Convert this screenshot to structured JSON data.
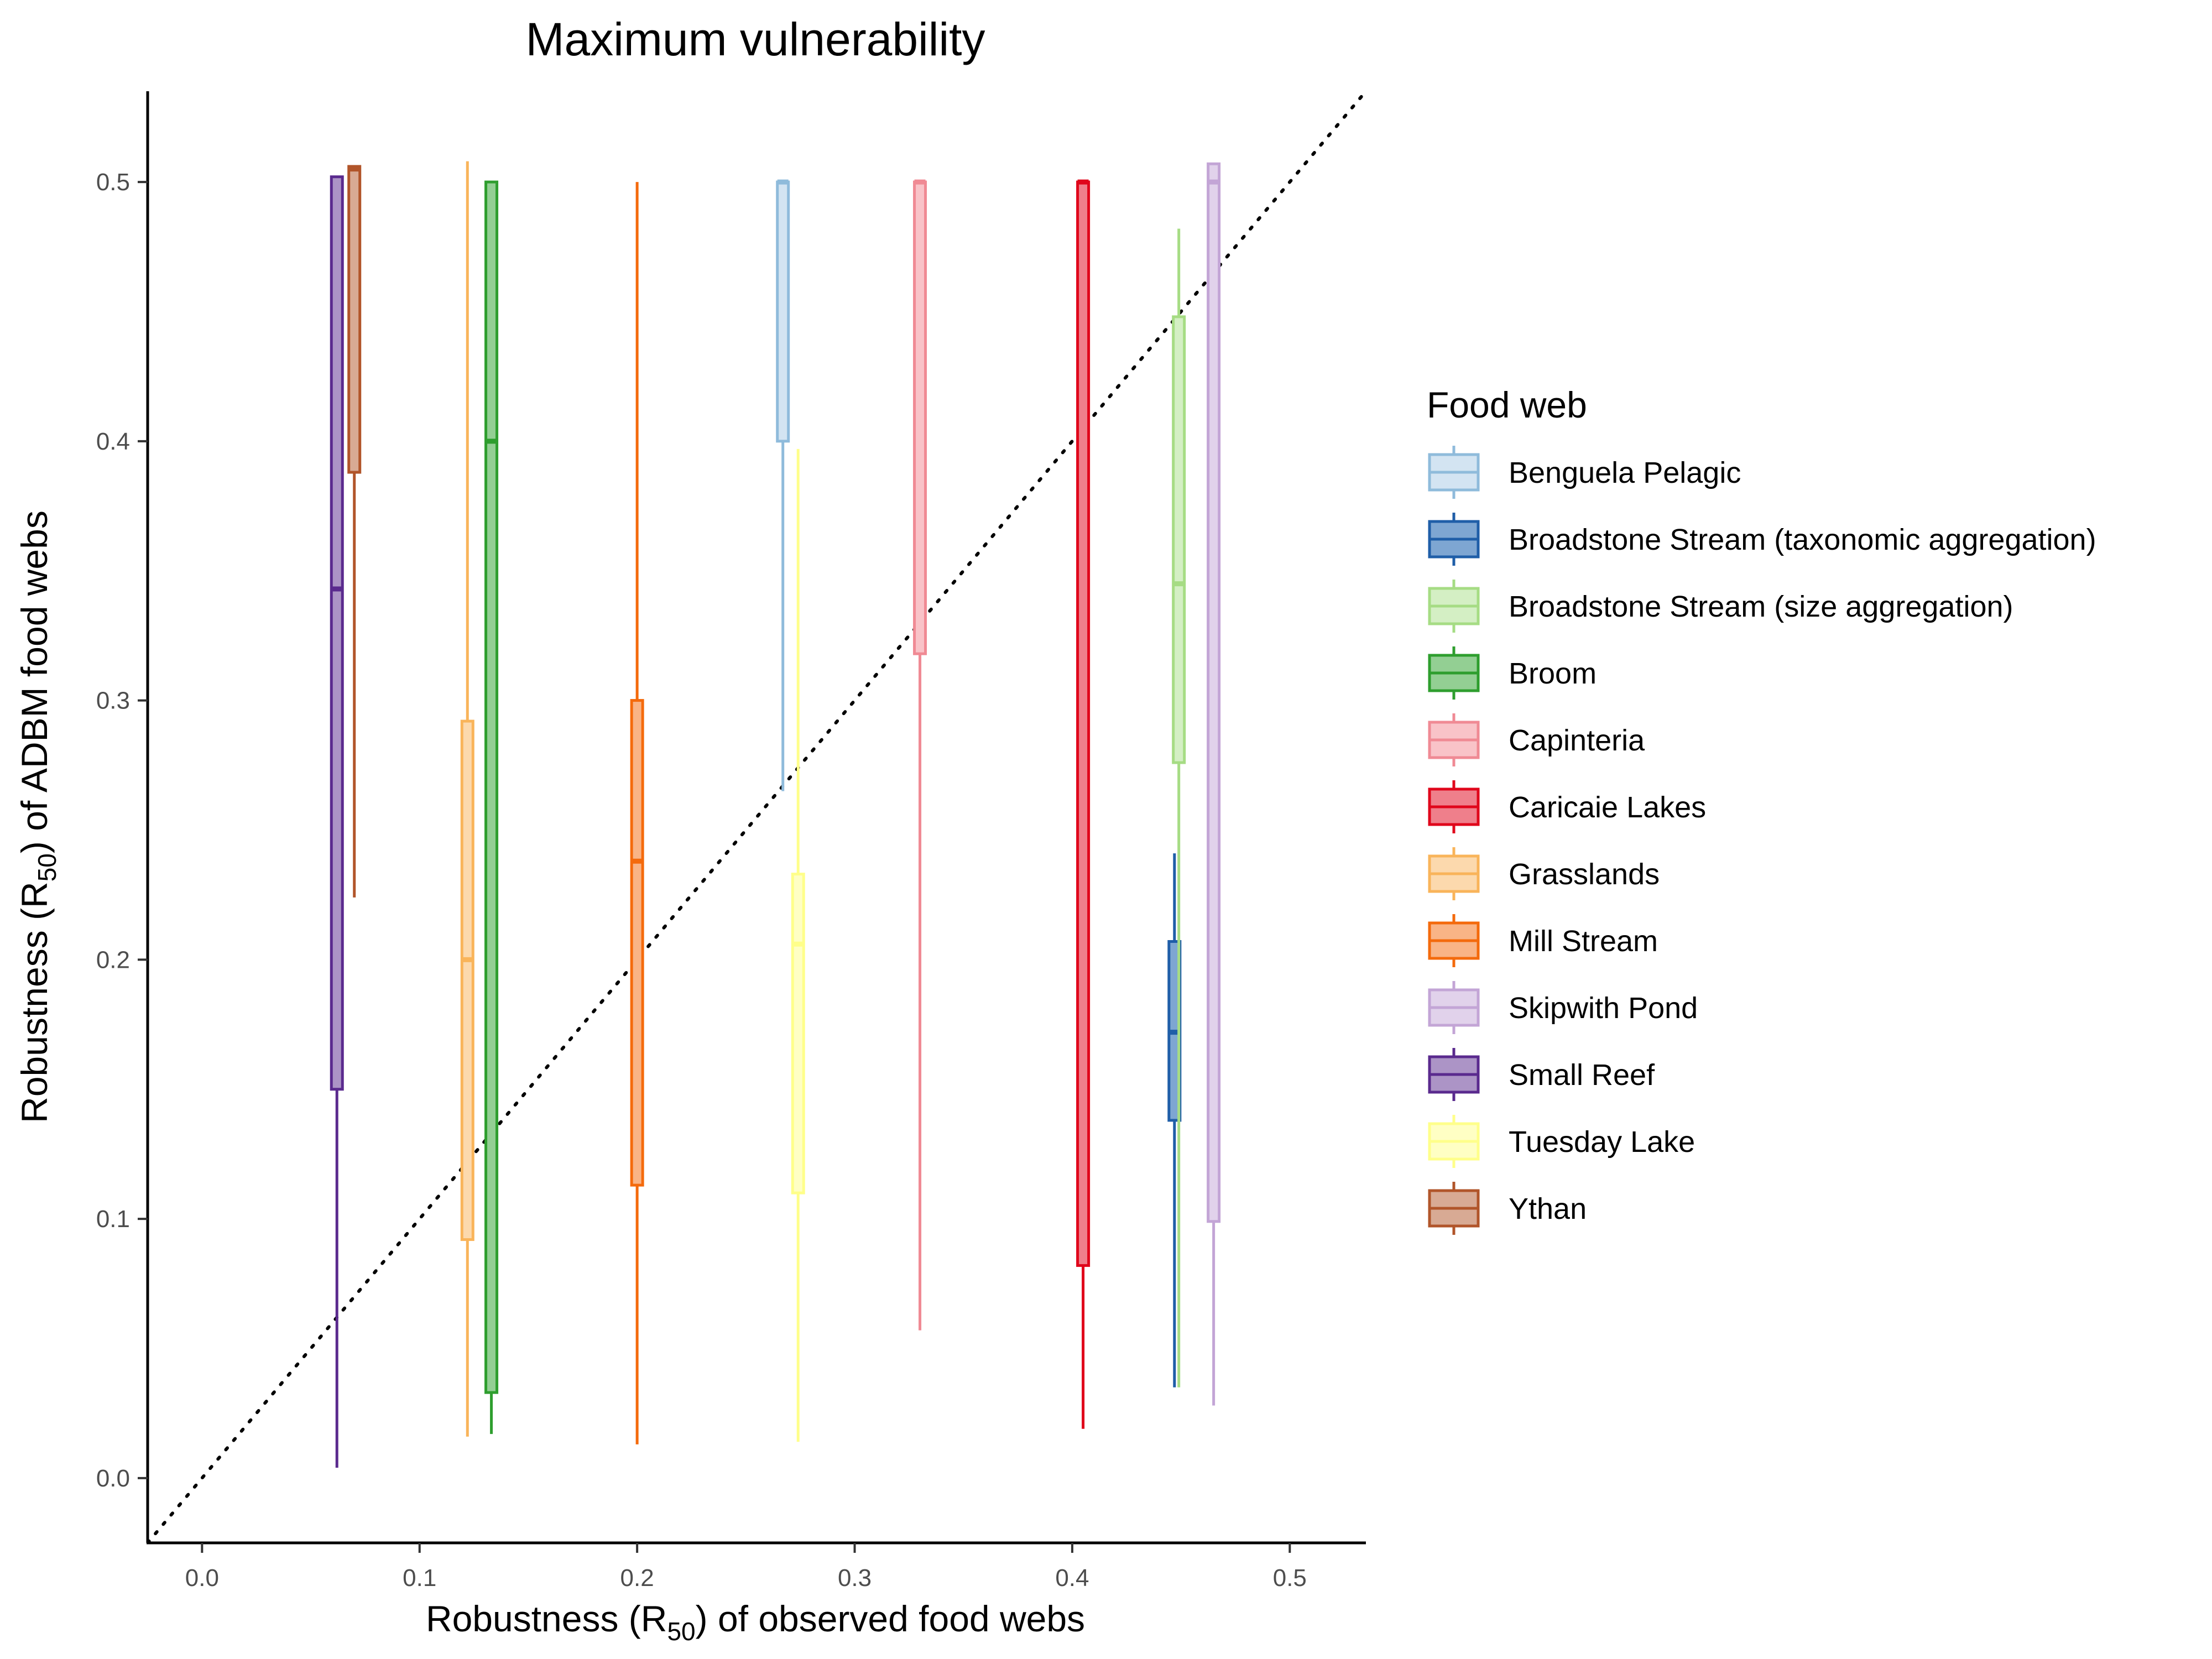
{
  "chart_data": {
    "type": "boxplot",
    "title": "Maximum vulnerability",
    "xlabel": {
      "pre": "Robustness (R",
      "sub": "50",
      "post": ") of observed food webs"
    },
    "ylabel": {
      "pre": "Robustness (R",
      "sub": "50",
      "post": ") of ADBM food webs"
    },
    "xlim": [
      -0.025,
      0.535
    ],
    "ylim": [
      -0.025,
      0.535
    ],
    "x_ticks": [
      "0.0",
      "0.1",
      "0.2",
      "0.3",
      "0.4",
      "0.5"
    ],
    "y_ticks": [
      "0.0",
      "0.1",
      "0.2",
      "0.3",
      "0.4",
      "0.5"
    ],
    "reference_line": {
      "type": "identity",
      "style": "dotted",
      "color": "#000000"
    },
    "grid": false,
    "legend": {
      "title": "Food web",
      "position": "right"
    },
    "series": [
      {
        "name": "Benguela Pelagic",
        "x": 0.267,
        "min": 0.265,
        "q1": 0.4,
        "median": 0.5,
        "q3": 0.5,
        "max": 0.5,
        "color": "#8fbbdb",
        "fill": "#d3e4f2"
      },
      {
        "name": "Broadstone Stream (taxonomic aggregation)",
        "x": 0.447,
        "min": 0.035,
        "q1": 0.138,
        "median": 0.172,
        "q3": 0.207,
        "max": 0.241,
        "color": "#1f5ea8",
        "fill": "#7ea6d2"
      },
      {
        "name": "Broadstone Stream (size aggregation)",
        "x": 0.449,
        "min": 0.035,
        "q1": 0.276,
        "median": 0.345,
        "q3": 0.448,
        "max": 0.482,
        "color": "#a6dc84",
        "fill": "#d4efc4"
      },
      {
        "name": "Broom",
        "x": 0.133,
        "min": 0.017,
        "q1": 0.033,
        "median": 0.4,
        "q3": 0.5,
        "max": 0.5,
        "color": "#2e9e2e",
        "fill": "#93cf93"
      },
      {
        "name": "Capinteria",
        "x": 0.33,
        "min": 0.057,
        "q1": 0.318,
        "median": 0.5,
        "q3": 0.5,
        "max": 0.5,
        "color": "#f08a94",
        "fill": "#f9c3c8"
      },
      {
        "name": "Caricaie Lakes",
        "x": 0.405,
        "min": 0.019,
        "q1": 0.082,
        "median": 0.5,
        "q3": 0.5,
        "max": 0.5,
        "color": "#e0061b",
        "fill": "#ef7f8b"
      },
      {
        "name": "Grasslands",
        "x": 0.122,
        "min": 0.016,
        "q1": 0.092,
        "median": 0.2,
        "q3": 0.292,
        "max": 0.508,
        "color": "#f9b45a",
        "fill": "#fcd9ad"
      },
      {
        "name": "Mill Stream",
        "x": 0.2,
        "min": 0.013,
        "q1": 0.113,
        "median": 0.238,
        "q3": 0.3,
        "max": 0.5,
        "color": "#f46a0c",
        "fill": "#f9b486"
      },
      {
        "name": "Skipwith Pond",
        "x": 0.465,
        "min": 0.028,
        "q1": 0.099,
        "median": 0.5,
        "q3": 0.507,
        "max": 0.507,
        "color": "#c3a5d6",
        "fill": "#e1d2eb"
      },
      {
        "name": "Small Reef",
        "x": 0.062,
        "min": 0.004,
        "q1": 0.15,
        "median": 0.343,
        "q3": 0.502,
        "max": 0.502,
        "color": "#5a2a8e",
        "fill": "#ac94c6"
      },
      {
        "name": "Tuesday Lake",
        "x": 0.274,
        "min": 0.014,
        "q1": 0.11,
        "median": 0.206,
        "q3": 0.233,
        "max": 0.397,
        "color": "#ffff8a",
        "fill": "#ffffc4"
      },
      {
        "name": "Ythan",
        "x": 0.07,
        "min": 0.224,
        "q1": 0.388,
        "median": 0.505,
        "q3": 0.506,
        "max": 0.506,
        "color": "#b1552a",
        "fill": "#d8aa94"
      }
    ]
  }
}
